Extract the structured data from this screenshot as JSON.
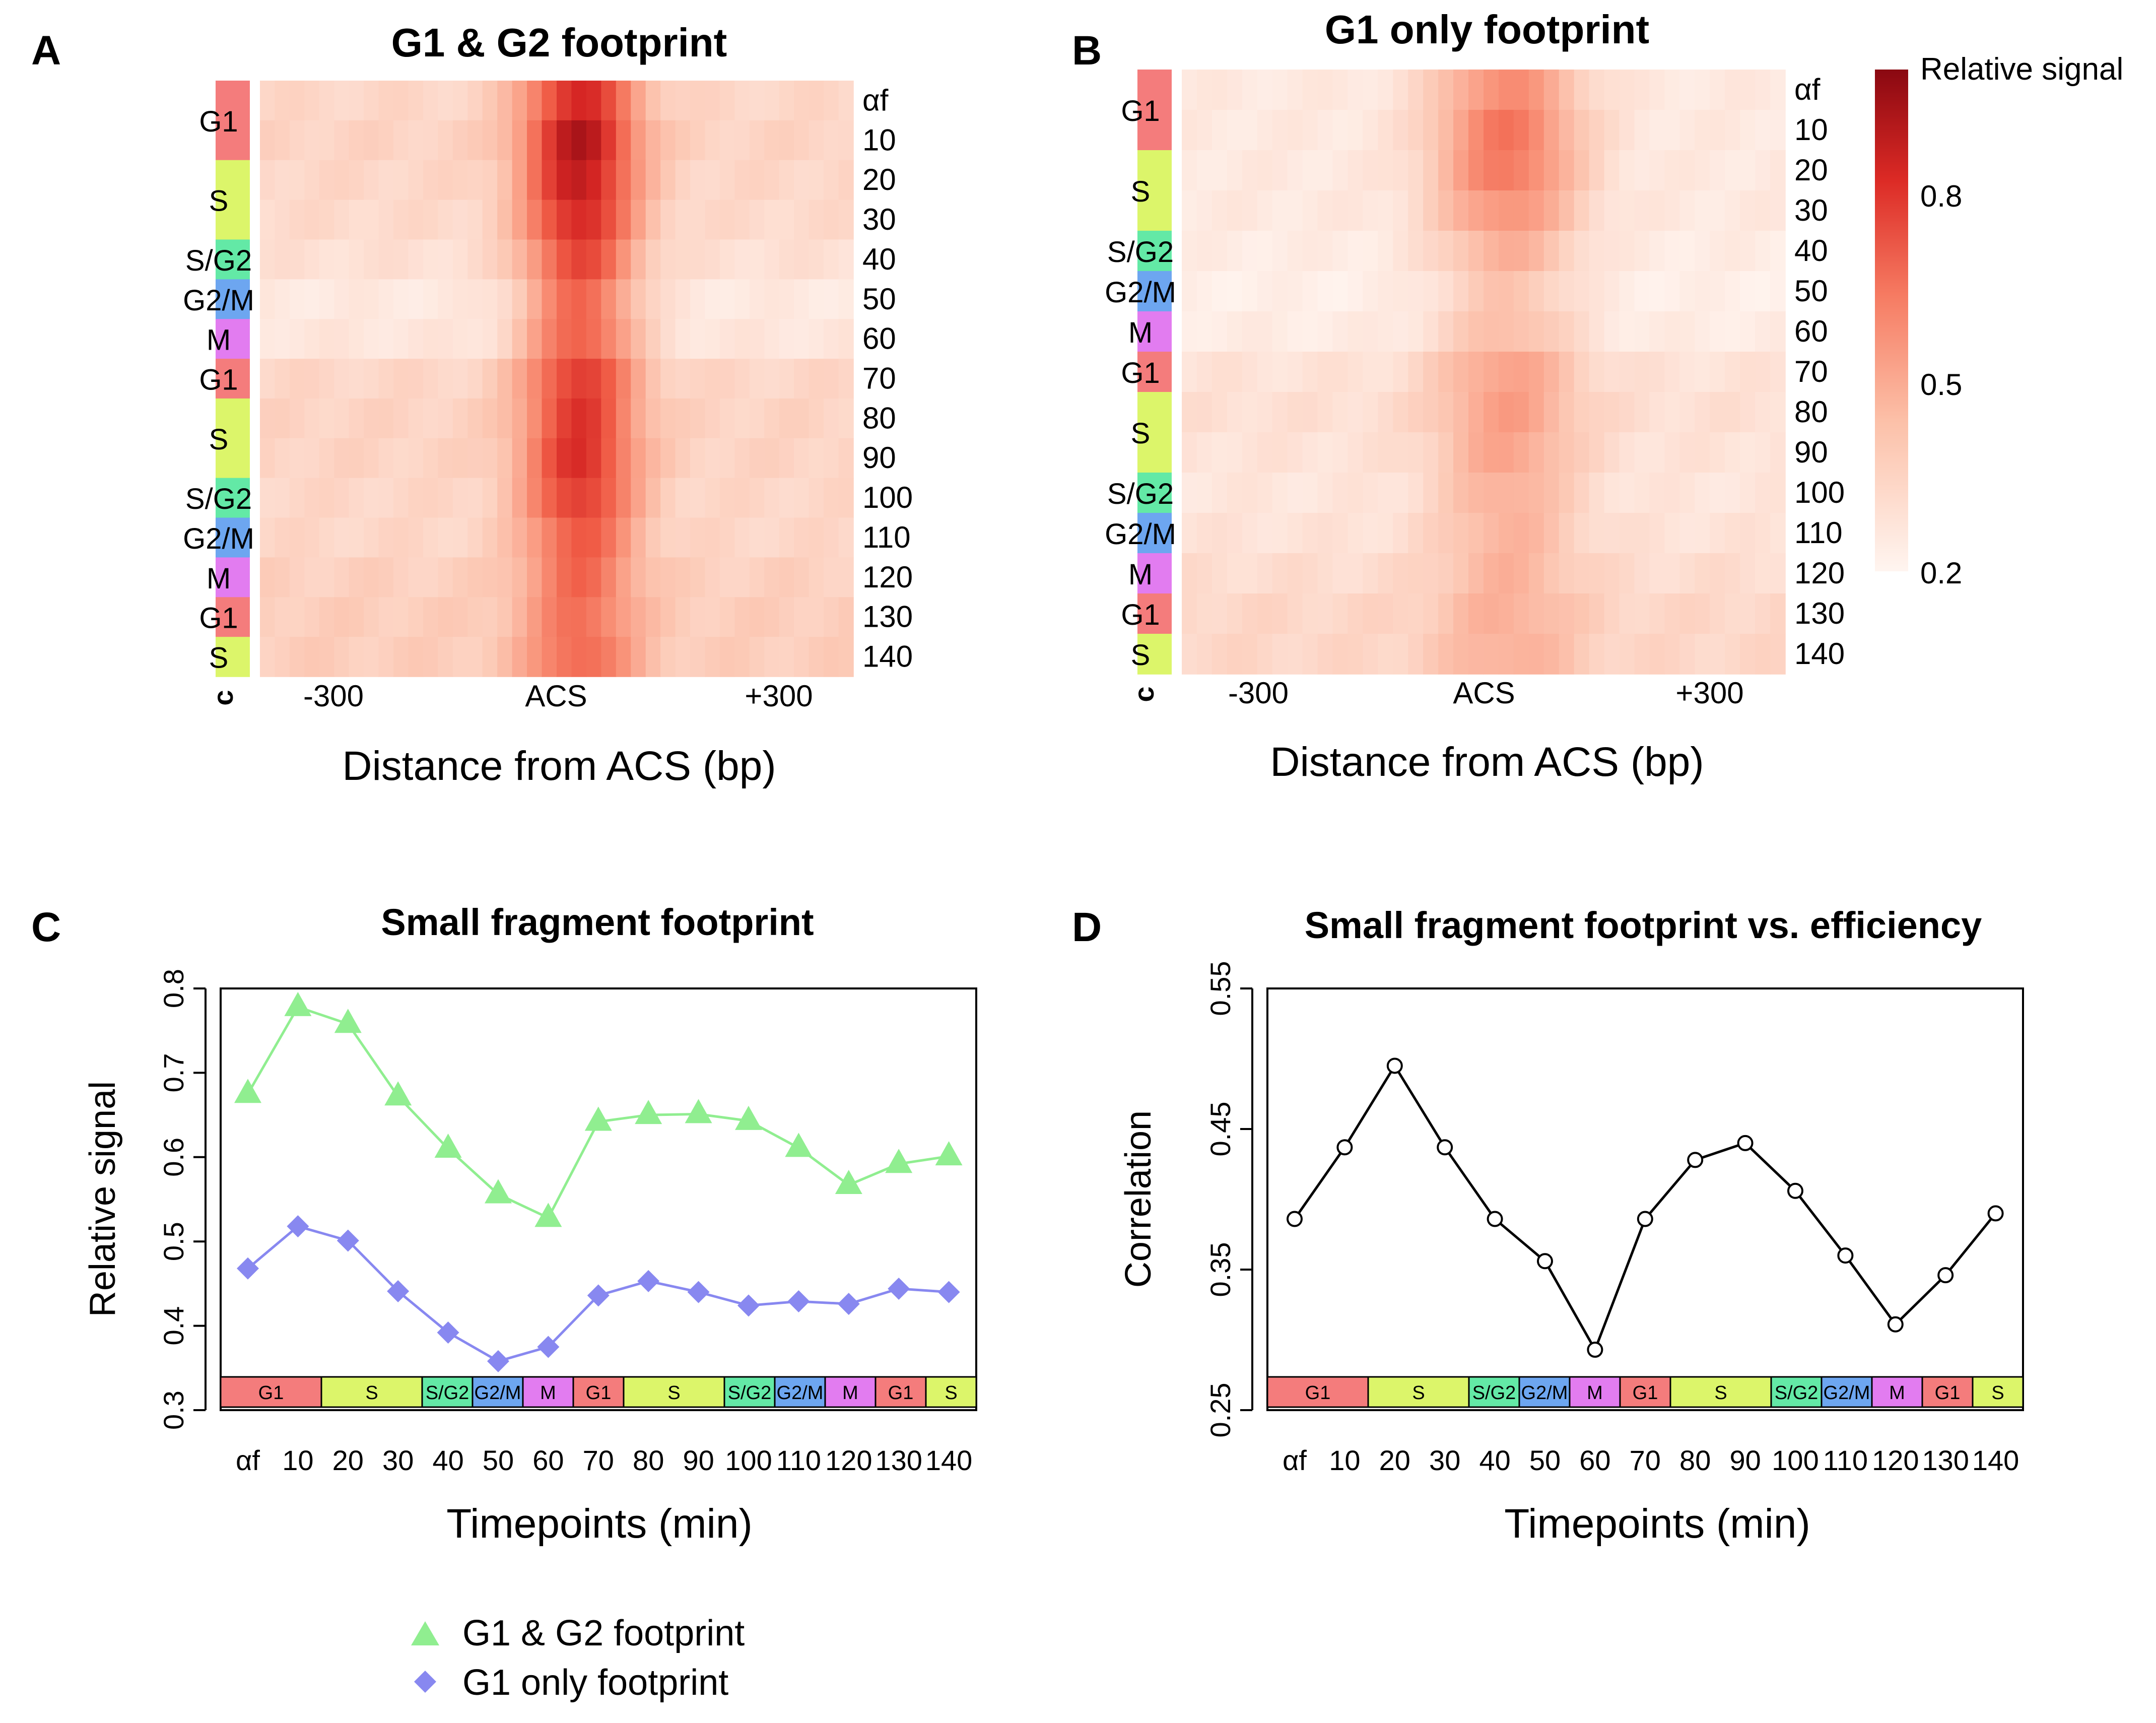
{
  "figure": {
    "panels": {
      "A": "A",
      "B": "B",
      "C": "C",
      "D": "D"
    },
    "legend": {
      "entries": [
        {
          "label": "G1 & G2 footprint",
          "color": "#90ee90",
          "marker": "triangle"
        },
        {
          "label": "G1 only footprint",
          "color": "#8888f0",
          "marker": "diamond"
        }
      ]
    }
  },
  "phase_colors": {
    "G1": "#f47c7c",
    "S": "#dcf56a",
    "S/G2": "#63e9a6",
    "G2/M": "#6da6f0",
    "M": "#e27cf0"
  },
  "heatmap_rows": {
    "labels": [
      "αf",
      "10",
      "20",
      "30",
      "40",
      "50",
      "60",
      "70",
      "80",
      "90",
      "100",
      "110",
      "120",
      "130",
      "140"
    ],
    "phase_per_row": [
      "G1",
      "G1",
      "S",
      "S",
      "S/G2",
      "G2/M",
      "M",
      "G1",
      "S",
      "S",
      "S/G2",
      "G2/M",
      "M",
      "G1",
      "S"
    ],
    "phase_blocks": [
      {
        "label": "G1",
        "rows": 2
      },
      {
        "label": "S",
        "rows": 2
      },
      {
        "label": "S/G2",
        "rows": 1
      },
      {
        "label": "G2/M",
        "rows": 1
      },
      {
        "label": "M",
        "rows": 1
      },
      {
        "label": "G1",
        "rows": 1
      },
      {
        "label": "S",
        "rows": 2
      },
      {
        "label": "S/G2",
        "rows": 1
      },
      {
        "label": "G2/M",
        "rows": 1
      },
      {
        "label": "M",
        "rows": 1
      },
      {
        "label": "G1",
        "rows": 1
      },
      {
        "label": "S",
        "rows": 1
      }
    ],
    "sidebar_bottom_label": "c"
  },
  "chart_data": [
    {
      "id": "A",
      "type": "heatmap",
      "title": "G1 & G2 footprint",
      "xlabel": "Distance from ACS (bp)",
      "xticks": [
        "-300",
        "ACS",
        "+300"
      ],
      "row_peak_values": [
        0.8,
        0.9,
        0.86,
        0.8,
        0.71,
        0.62,
        0.64,
        0.74,
        0.76,
        0.78,
        0.74,
        0.66,
        0.62,
        0.6,
        0.62
      ],
      "row_background_values": [
        0.3,
        0.31,
        0.3,
        0.29,
        0.27,
        0.24,
        0.25,
        0.3,
        0.31,
        0.31,
        0.3,
        0.3,
        0.32,
        0.33,
        0.33
      ]
    },
    {
      "id": "B",
      "type": "heatmap",
      "title": "G1 only footprint",
      "xlabel": "Distance from ACS (bp)",
      "xticks": [
        "-300",
        "ACS",
        "+300"
      ],
      "row_peak_values": [
        0.52,
        0.58,
        0.57,
        0.5,
        0.42,
        0.36,
        0.38,
        0.46,
        0.47,
        0.45,
        0.42,
        0.41,
        0.41,
        0.42,
        0.42
      ],
      "row_background_values": [
        0.24,
        0.24,
        0.24,
        0.24,
        0.23,
        0.22,
        0.23,
        0.26,
        0.27,
        0.26,
        0.25,
        0.26,
        0.28,
        0.3,
        0.3
      ],
      "colorbar": {
        "title": "Relative signal",
        "ticks": [
          "0.8",
          "0.5",
          "0.2"
        ],
        "range": [
          0.2,
          1.0
        ]
      }
    },
    {
      "id": "C",
      "type": "line",
      "title": "Small fragment footprint",
      "xlabel": "Timepoints (min)",
      "ylabel": "Relative signal",
      "categories": [
        "αf",
        "10",
        "20",
        "30",
        "40",
        "50",
        "60",
        "70",
        "80",
        "90",
        "100",
        "110",
        "120",
        "130",
        "140"
      ],
      "ylim": [
        0.3,
        0.8
      ],
      "yticks": [
        "0.3",
        "0.4",
        "0.5",
        "0.6",
        "0.7",
        "0.8"
      ],
      "series": [
        {
          "name": "G1 & G2 footprint",
          "color": "#90ee90",
          "marker": "triangle",
          "values": [
            0.675,
            0.778,
            0.758,
            0.672,
            0.61,
            0.556,
            0.528,
            0.642,
            0.65,
            0.651,
            0.643,
            0.611,
            0.567,
            0.592,
            0.601
          ]
        },
        {
          "name": "G1 only footprint",
          "color": "#8888f0",
          "marker": "diamond",
          "values": [
            0.468,
            0.518,
            0.501,
            0.441,
            0.392,
            0.358,
            0.375,
            0.436,
            0.453,
            0.44,
            0.424,
            0.429,
            0.426,
            0.444,
            0.44
          ]
        }
      ],
      "phase_strip": [
        {
          "label": "G1",
          "span": 2
        },
        {
          "label": "S",
          "span": 2
        },
        {
          "label": "S/G2",
          "span": 1
        },
        {
          "label": "G2/M",
          "span": 1
        },
        {
          "label": "M",
          "span": 1
        },
        {
          "label": "G1",
          "span": 1
        },
        {
          "label": "S",
          "span": 2
        },
        {
          "label": "S/G2",
          "span": 1
        },
        {
          "label": "G2/M",
          "span": 1
        },
        {
          "label": "M",
          "span": 1
        },
        {
          "label": "G1",
          "span": 1
        },
        {
          "label": "S",
          "span": 1
        }
      ]
    },
    {
      "id": "D",
      "type": "line",
      "title": "Small fragment footprint vs. efficiency",
      "xlabel": "Timepoints (min)",
      "ylabel": "Correlation",
      "categories": [
        "αf",
        "10",
        "20",
        "30",
        "40",
        "50",
        "60",
        "70",
        "80",
        "90",
        "100",
        "110",
        "120",
        "130",
        "140"
      ],
      "ylim": [
        0.25,
        0.55
      ],
      "yticks": [
        "0.25",
        "0.35",
        "0.45",
        "0.55"
      ],
      "series": [
        {
          "name": "Correlation",
          "color": "#000000",
          "marker": "circle",
          "values": [
            0.386,
            0.437,
            0.495,
            0.437,
            0.386,
            0.356,
            0.293,
            0.386,
            0.428,
            0.44,
            0.406,
            0.36,
            0.311,
            0.346,
            0.39
          ]
        }
      ],
      "phase_strip": [
        {
          "label": "G1",
          "span": 2
        },
        {
          "label": "S",
          "span": 2
        },
        {
          "label": "S/G2",
          "span": 1
        },
        {
          "label": "G2/M",
          "span": 1
        },
        {
          "label": "M",
          "span": 1
        },
        {
          "label": "G1",
          "span": 1
        },
        {
          "label": "S",
          "span": 2
        },
        {
          "label": "S/G2",
          "span": 1
        },
        {
          "label": "G2/M",
          "span": 1
        },
        {
          "label": "M",
          "span": 1
        },
        {
          "label": "G1",
          "span": 1
        },
        {
          "label": "S",
          "span": 1
        }
      ]
    }
  ]
}
